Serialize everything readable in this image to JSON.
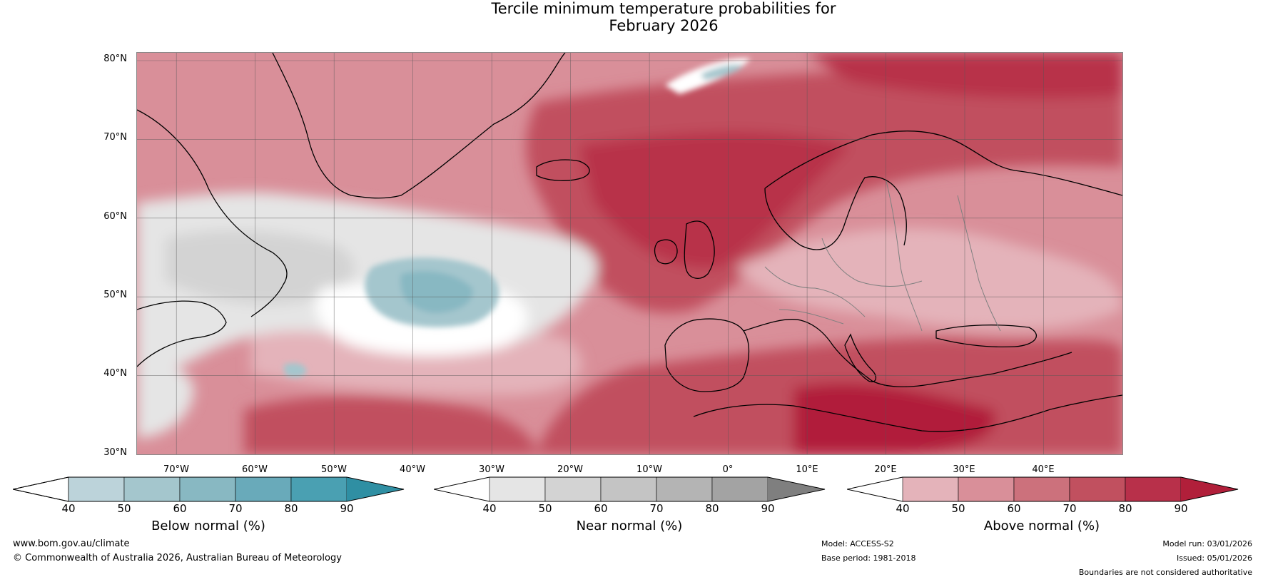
{
  "title": {
    "line1": "Tercile minimum temperature probabilities for",
    "line2": "February 2026"
  },
  "map": {
    "lat_labels": [
      "80°N",
      "70°N",
      "60°N",
      "50°N",
      "40°N",
      "30°N"
    ],
    "lon_labels": [
      "70°W",
      "60°W",
      "50°W",
      "40°W",
      "30°W",
      "20°W",
      "10°W",
      "0°",
      "10°E",
      "20°E",
      "30°E",
      "40°E"
    ],
    "extent": {
      "lon_min": -75,
      "lon_max": 50,
      "lat_min": 30,
      "lat_max": 81
    }
  },
  "colorbars": [
    {
      "label": "Below normal (%)",
      "ticks": [
        "40",
        "50",
        "60",
        "70",
        "80",
        "90"
      ],
      "colors": [
        "#ffffff",
        "#bcd3da",
        "#a4c6cd",
        "#88b8c2",
        "#69aaba",
        "#4aa0b2",
        "#2f8fa3"
      ]
    },
    {
      "label": "Near normal (%)",
      "ticks": [
        "40",
        "50",
        "60",
        "70",
        "80",
        "90"
      ],
      "colors": [
        "#ffffff",
        "#e5e5e5",
        "#d3d3d3",
        "#c4c4c4",
        "#b4b4b4",
        "#a3a3a3",
        "#7f7f7f"
      ]
    },
    {
      "label": "Above normal (%)",
      "ticks": [
        "40",
        "50",
        "60",
        "70",
        "80",
        "90"
      ],
      "colors": [
        "#ffffff",
        "#e4b3ba",
        "#d98f99",
        "#cc717c",
        "#c1505f",
        "#b8304a",
        "#b11f3a"
      ]
    }
  ],
  "footer": {
    "website": "www.bom.gov.au/climate",
    "copyright": "© Commonwealth of Australia 2026, Australian Bureau of Meteorology",
    "model": "Model: ACCESS-S2",
    "base_period": "Base period: 1981-2018",
    "model_run": "Model run: 03/01/2026",
    "issued": "Issued: 05/01/2026",
    "disclaimer": "Boundaries are not considered authoritative"
  }
}
